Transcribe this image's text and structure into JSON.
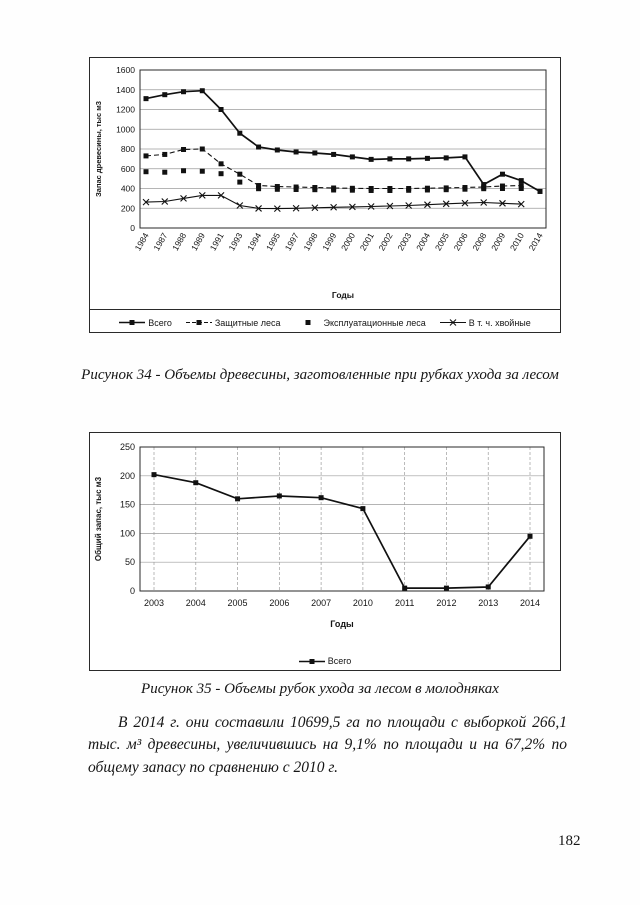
{
  "page": {
    "number": "182"
  },
  "figure34": {
    "caption": "Рисунок 34 - Объемы древесины, заготовленные при рубках ухода за лесом"
  },
  "figure35": {
    "caption": "Рисунок 35 -  Объемы рубок ухода за лесом в молодняках"
  },
  "paragraph": "В 2014 г. они составили 10699,5 га по площади с выборкой 266,1 тыс. м³ древесины, увеличившись на 9,1% по площади и на 67,2% по общему запасу по сравнению с 2010 г.",
  "colors": {
    "ink": "#151515",
    "grid": "#9c9c9c",
    "paper": "#fefefe"
  },
  "chart_data": [
    {
      "type": "line",
      "title": "",
      "ylabel": "Запас древесины, тыс м3",
      "xlabel": "Годы",
      "ylim": [
        0,
        1600
      ],
      "ytick_step": 200,
      "grid": "horizontal",
      "legend_position": "bottom",
      "categories": [
        "1984",
        "1987",
        "1988",
        "1989",
        "1991",
        "1993",
        "1994",
        "1995",
        "1997",
        "1998",
        "1999",
        "2000",
        "2001",
        "2002",
        "2003",
        "2004",
        "2005",
        "2006",
        "2008",
        "2009",
        "2010",
        "2014"
      ],
      "series": [
        {
          "name": "Всего",
          "line": "solid",
          "marker": "square",
          "values": [
            1310,
            1350,
            1380,
            1390,
            1200,
            960,
            820,
            790,
            770,
            760,
            745,
            720,
            695,
            700,
            700,
            705,
            710,
            720,
            440,
            545,
            480,
            370
          ]
        },
        {
          "name": "Защитные леса",
          "line": "dashed",
          "marker": "square",
          "values": [
            730,
            745,
            795,
            800,
            650,
            545,
            430,
            420,
            415,
            410,
            405,
            402,
            400,
            400,
            400,
            403,
            406,
            410,
            415,
            425,
            430,
            null
          ]
        },
        {
          "name": "Эксплуатационные леса",
          "line": "none",
          "marker": "square",
          "values": [
            570,
            565,
            580,
            575,
            550,
            465,
            398,
            392,
            390,
            388,
            385,
            383,
            380,
            380,
            382,
            385,
            388,
            393,
            398,
            400,
            400,
            null
          ]
        },
        {
          "name": "В т. ч. хвойные",
          "line": "solid-thin",
          "marker": "x",
          "values": [
            262,
            268,
            300,
            330,
            330,
            228,
            198,
            196,
            200,
            205,
            210,
            214,
            218,
            223,
            228,
            236,
            245,
            252,
            258,
            250,
            242,
            null
          ]
        }
      ]
    },
    {
      "type": "line",
      "title": "",
      "ylabel": "Общий запас, тыс м3",
      "xlabel": "Годы",
      "ylim": [
        0,
        250
      ],
      "ytick_step": 50,
      "grid": "both",
      "legend_position": "bottom",
      "categories": [
        "2003",
        "2004",
        "2005",
        "2006",
        "2007",
        "2010",
        "2011",
        "2012",
        "2013",
        "2014"
      ],
      "series": [
        {
          "name": "Всего",
          "line": "solid",
          "marker": "square",
          "values": [
            202,
            188,
            160,
            165,
            162,
            143,
            5,
            5,
            7,
            95
          ]
        }
      ]
    }
  ]
}
